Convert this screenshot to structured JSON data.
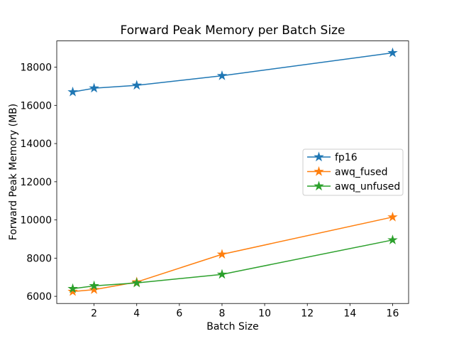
{
  "figure": {
    "title": "Forward Peak Memory per Batch Size",
    "xlabel": "Batch Size",
    "ylabel": "Forward Peak Memory (MB)"
  },
  "chart_data": {
    "type": "line",
    "title": "Forward Peak Memory per Batch Size",
    "xlabel": "Batch Size",
    "ylabel": "Forward Peak Memory (MB)",
    "x": [
      1,
      2,
      4,
      8,
      16
    ],
    "series": [
      {
        "name": "fp16",
        "color": "#1f77b4",
        "marker": "star",
        "values": [
          16700,
          16900,
          17050,
          17550,
          18750
        ]
      },
      {
        "name": "awq_fused",
        "color": "#ff7f0e",
        "marker": "star",
        "values": [
          6250,
          6350,
          6750,
          8200,
          10150
        ]
      },
      {
        "name": "awq_unfused",
        "color": "#2ca02c",
        "marker": "star",
        "values": [
          6400,
          6550,
          6700,
          7150,
          8950
        ]
      }
    ],
    "xlim": [
      0.25,
      16.75
    ],
    "ylim": [
      5625,
      19375
    ],
    "xticks": [
      2,
      4,
      6,
      8,
      10,
      12,
      14,
      16
    ],
    "yticks": [
      6000,
      8000,
      10000,
      12000,
      14000,
      16000,
      18000
    ],
    "grid": false,
    "legend_position": "center right",
    "axis_color": "#000000",
    "background_color": "#ffffff"
  }
}
